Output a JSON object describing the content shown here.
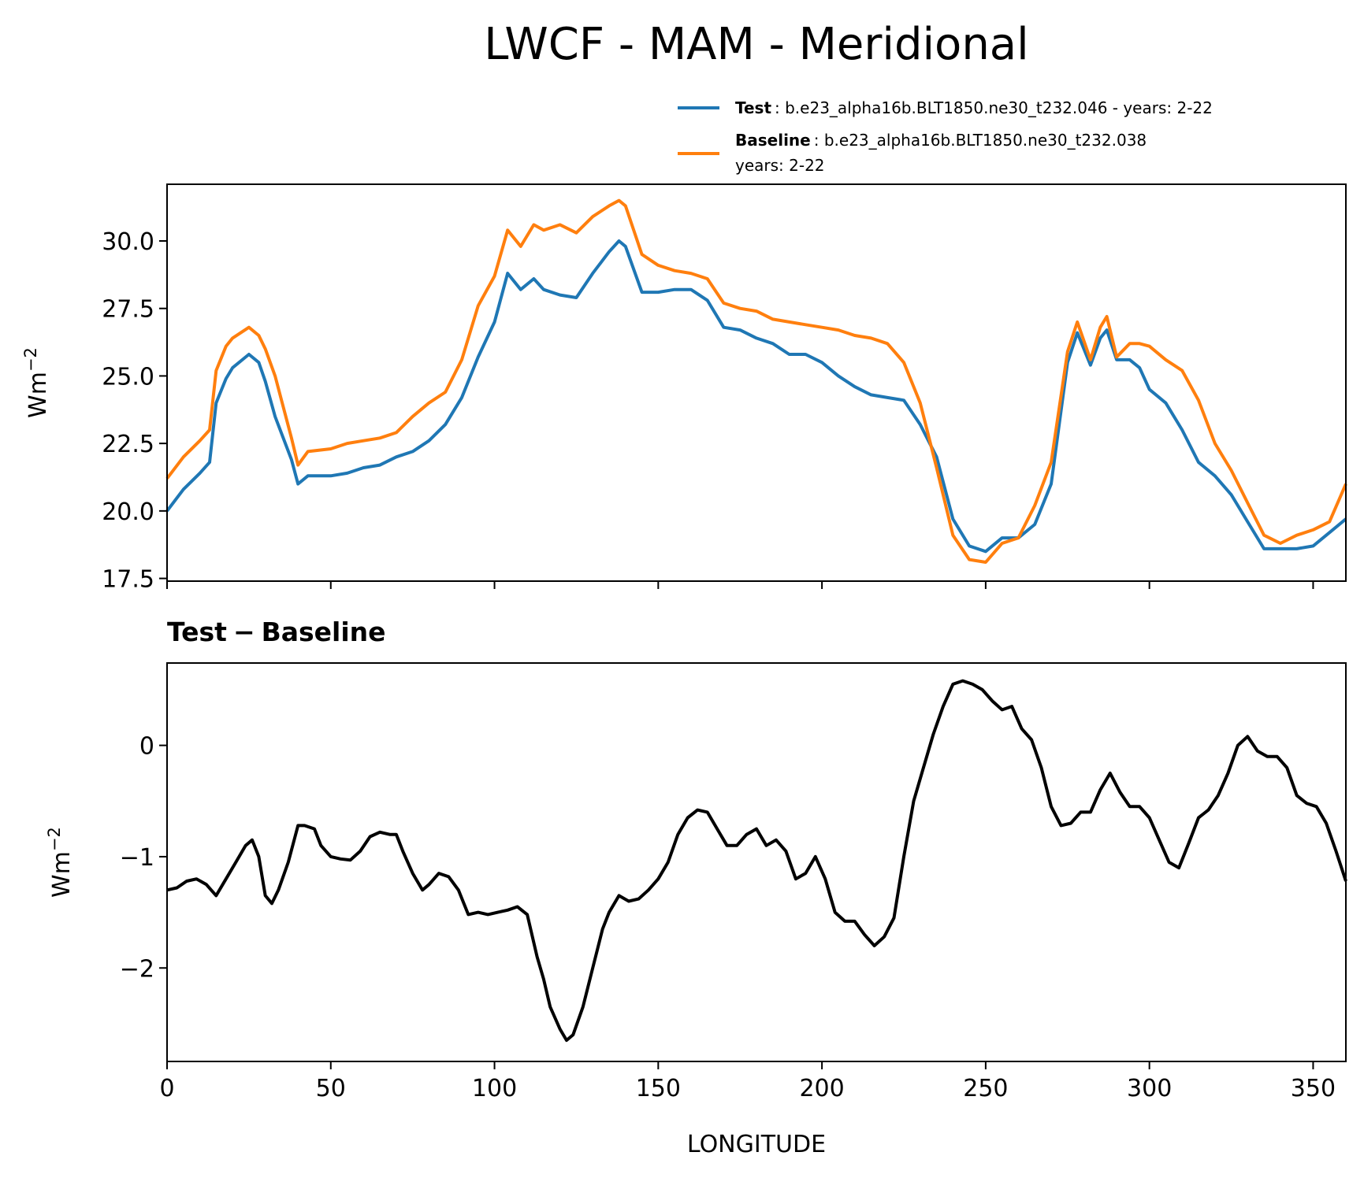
{
  "figure_title": "LWCF - MAM - Meridional",
  "colors": {
    "test": "#1f77b4",
    "baseline": "#ff7f0e",
    "difference": "#000000"
  },
  "legend": {
    "test_name": "Test",
    "test_desc": ": b.e23_alpha16b.BLT1850.ne30_t232.046 - years: 2-22",
    "baseline_name": "Baseline",
    "baseline_desc": ": b.e23_alpha16b.BLT1850.ne30_t232.038",
    "baseline_desc_line2": "years: 2-22"
  },
  "chart_data": [
    {
      "type": "line",
      "title": "",
      "xlabel": "",
      "ylabel": "Wm−2",
      "ylabel_base": "Wm",
      "ylabel_exp": "−2",
      "xlim": [
        0,
        360
      ],
      "ylim": [
        17.4,
        32.1
      ],
      "xticks": [
        0,
        50,
        100,
        150,
        200,
        250,
        300,
        350
      ],
      "yticks": [
        17.5,
        20.0,
        22.5,
        25.0,
        27.5,
        30.0
      ],
      "ytick_labels": [
        "17.5",
        "20.0",
        "22.5",
        "25.0",
        "27.5",
        "30.0"
      ],
      "x": [
        0,
        5,
        10,
        13,
        15,
        18,
        20,
        25,
        28,
        30,
        33,
        38,
        40,
        43,
        50,
        55,
        60,
        65,
        70,
        75,
        80,
        85,
        90,
        95,
        100,
        104,
        108,
        112,
        115,
        120,
        125,
        130,
        135,
        138,
        140,
        145,
        150,
        155,
        160,
        165,
        170,
        175,
        180,
        185,
        190,
        195,
        200,
        205,
        210,
        215,
        220,
        225,
        230,
        235,
        240,
        245,
        250,
        255,
        260,
        265,
        270,
        275,
        278,
        282,
        285,
        287,
        290,
        294,
        297,
        300,
        305,
        310,
        315,
        320,
        325,
        330,
        335,
        340,
        345,
        350,
        355,
        360
      ],
      "series": [
        {
          "name": "Test",
          "color_key": "test",
          "values": [
            20.0,
            20.8,
            21.4,
            21.8,
            24.0,
            24.9,
            25.3,
            25.8,
            25.5,
            24.8,
            23.5,
            21.9,
            21.0,
            21.3,
            21.3,
            21.4,
            21.6,
            21.7,
            22.0,
            22.2,
            22.6,
            23.2,
            24.2,
            25.7,
            27.0,
            28.8,
            28.2,
            28.6,
            28.2,
            28.0,
            27.9,
            28.8,
            29.6,
            30.0,
            29.8,
            28.1,
            28.1,
            28.2,
            28.2,
            27.8,
            26.8,
            26.7,
            26.4,
            26.2,
            25.8,
            25.8,
            25.5,
            25.0,
            24.6,
            24.3,
            24.2,
            24.1,
            23.2,
            22.0,
            19.7,
            18.7,
            18.5,
            19.0,
            19.0,
            19.5,
            21.0,
            25.5,
            26.6,
            25.4,
            26.4,
            26.7,
            25.6,
            25.6,
            25.3,
            24.5,
            24.0,
            23.0,
            21.8,
            21.3,
            20.6,
            19.6,
            18.6,
            18.6,
            18.6,
            18.7,
            19.2,
            19.7
          ]
        },
        {
          "name": "Baseline",
          "color_key": "baseline",
          "values": [
            21.2,
            22.0,
            22.6,
            23.0,
            25.2,
            26.1,
            26.4,
            26.8,
            26.5,
            26.0,
            25.0,
            22.7,
            21.7,
            22.2,
            22.3,
            22.5,
            22.6,
            22.7,
            22.9,
            23.5,
            24.0,
            24.4,
            25.6,
            27.6,
            28.7,
            30.4,
            29.8,
            30.6,
            30.4,
            30.6,
            30.3,
            30.9,
            31.3,
            31.5,
            31.3,
            29.5,
            29.1,
            28.9,
            28.8,
            28.6,
            27.7,
            27.5,
            27.4,
            27.1,
            27.0,
            26.9,
            26.8,
            26.7,
            26.5,
            26.4,
            26.2,
            25.5,
            24.0,
            21.6,
            19.1,
            18.2,
            18.1,
            18.8,
            19.0,
            20.2,
            21.8,
            25.9,
            27.0,
            25.6,
            26.8,
            27.2,
            25.7,
            26.2,
            26.2,
            26.1,
            25.6,
            25.2,
            24.1,
            22.5,
            21.5,
            20.3,
            19.1,
            18.8,
            19.1,
            19.3,
            19.6,
            21.0
          ]
        }
      ]
    },
    {
      "type": "line",
      "title": "Test − Baseline",
      "title_part1": "Test",
      "title_part2": "Baseline",
      "xlabel": "LONGITUDE",
      "ylabel": "Wm−2",
      "ylabel_base": "Wm",
      "ylabel_exp": "−2",
      "xlim": [
        0,
        360
      ],
      "ylim": [
        -2.84,
        0.74
      ],
      "xticks": [
        0,
        50,
        100,
        150,
        200,
        250,
        300,
        350
      ],
      "xtick_labels": [
        "0",
        "50",
        "100",
        "150",
        "200",
        "250",
        "300",
        "350"
      ],
      "yticks": [
        -2,
        -1,
        0
      ],
      "ytick_labels": [
        "−2",
        "−1",
        "0"
      ],
      "x": [
        0,
        3,
        6,
        9,
        12,
        15,
        18,
        21,
        24,
        26,
        28,
        30,
        32,
        34,
        37,
        40,
        42,
        45,
        47,
        50,
        53,
        56,
        59,
        62,
        65,
        68,
        70,
        72,
        75,
        78,
        80,
        83,
        86,
        89,
        92,
        95,
        98,
        101,
        104,
        107,
        110,
        113,
        115,
        117,
        120,
        122,
        124,
        127,
        130,
        133,
        135,
        138,
        141,
        144,
        147,
        150,
        153,
        156,
        159,
        162,
        165,
        168,
        171,
        174,
        177,
        180,
        183,
        186,
        189,
        192,
        195,
        198,
        201,
        204,
        207,
        210,
        213,
        216,
        219,
        222,
        225,
        228,
        231,
        234,
        237,
        240,
        243,
        246,
        249,
        252,
        255,
        258,
        261,
        264,
        267,
        270,
        273,
        276,
        279,
        282,
        285,
        288,
        291,
        294,
        297,
        300,
        303,
        306,
        309,
        312,
        315,
        318,
        321,
        324,
        327,
        330,
        333,
        336,
        339,
        342,
        345,
        348,
        351,
        354,
        357,
        360
      ],
      "series": [
        {
          "name": "Test − Baseline",
          "color_key": "difference",
          "values": [
            -1.3,
            -1.28,
            -1.22,
            -1.2,
            -1.25,
            -1.35,
            -1.2,
            -1.05,
            -0.9,
            -0.85,
            -1.0,
            -1.35,
            -1.42,
            -1.3,
            -1.05,
            -0.72,
            -0.72,
            -0.75,
            -0.9,
            -1.0,
            -1.02,
            -1.03,
            -0.95,
            -0.82,
            -0.78,
            -0.8,
            -0.8,
            -0.95,
            -1.15,
            -1.3,
            -1.25,
            -1.15,
            -1.18,
            -1.3,
            -1.52,
            -1.5,
            -1.52,
            -1.5,
            -1.48,
            -1.45,
            -1.52,
            -1.9,
            -2.1,
            -2.35,
            -2.55,
            -2.65,
            -2.6,
            -2.35,
            -2.0,
            -1.65,
            -1.5,
            -1.35,
            -1.4,
            -1.38,
            -1.3,
            -1.2,
            -1.05,
            -0.8,
            -0.65,
            -0.58,
            -0.6,
            -0.75,
            -0.9,
            -0.9,
            -0.8,
            -0.75,
            -0.9,
            -0.85,
            -0.95,
            -1.2,
            -1.15,
            -1.0,
            -1.2,
            -1.5,
            -1.58,
            -1.58,
            -1.7,
            -1.8,
            -1.72,
            -1.55,
            -1.0,
            -0.5,
            -0.2,
            0.1,
            0.35,
            0.55,
            0.58,
            0.55,
            0.5,
            0.4,
            0.32,
            0.35,
            0.15,
            0.05,
            -0.2,
            -0.55,
            -0.72,
            -0.7,
            -0.6,
            -0.6,
            -0.4,
            -0.25,
            -0.42,
            -0.55,
            -0.55,
            -0.65,
            -0.85,
            -1.05,
            -1.1,
            -0.88,
            -0.65,
            -0.58,
            -0.45,
            -0.25,
            0.0,
            0.08,
            -0.05,
            -0.1,
            -0.1,
            -0.2,
            -0.45,
            -0.52,
            -0.55,
            -0.7,
            -0.95,
            -1.22
          ]
        }
      ]
    }
  ]
}
